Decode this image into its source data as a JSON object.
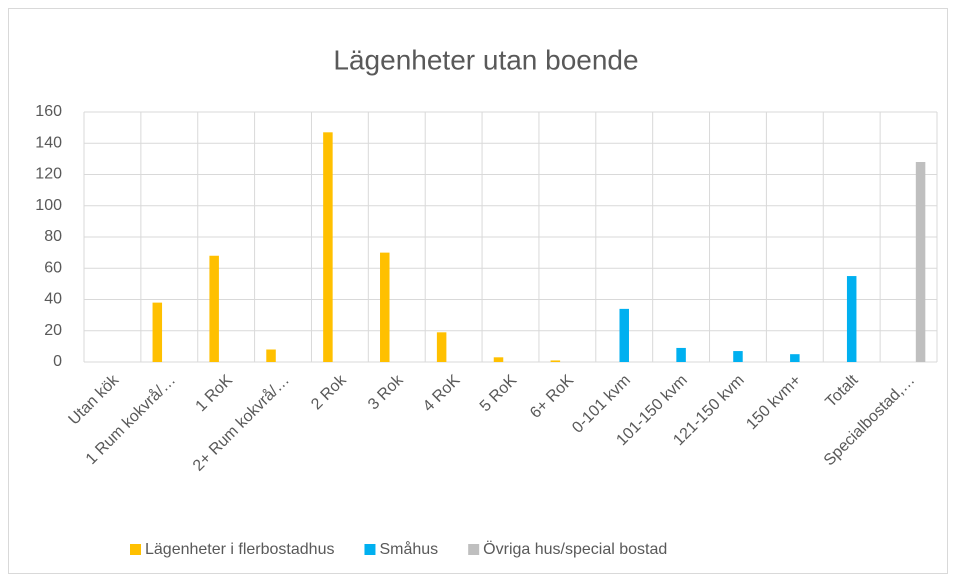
{
  "chart_data": {
    "type": "bar",
    "title": "Lägenheter utan boende",
    "categories": [
      "Utan kök",
      "1 Rum  kokvrå/…",
      "1 RoK",
      "2+ Rum kokvrå/…",
      "2 Rok",
      "3 Rok",
      "4 RoK",
      "5 RoK",
      "6+ RoK",
      "0-101 kvm",
      "101-150 kvm",
      "121-150 kvm",
      "150 kvm+",
      "Totalt",
      "Specialbostad,…"
    ],
    "series": [
      {
        "name": "Lägenheter i flerbostadhus",
        "color": "#ffc000",
        "values": [
          null,
          38,
          68,
          8,
          147,
          70,
          19,
          3,
          1,
          null,
          null,
          null,
          null,
          null,
          null
        ]
      },
      {
        "name": "Småhus",
        "color": "#00b0f0",
        "values": [
          null,
          null,
          null,
          null,
          null,
          null,
          null,
          null,
          null,
          34,
          9,
          7,
          5,
          55,
          null
        ]
      },
      {
        "name": "Övriga hus/special bostad",
        "color": "#bfbfbf",
        "values": [
          null,
          null,
          null,
          null,
          null,
          null,
          null,
          null,
          null,
          null,
          null,
          null,
          null,
          null,
          128
        ]
      }
    ],
    "ylim": [
      0,
      160
    ],
    "yticks": [
      0,
      20,
      40,
      60,
      80,
      100,
      120,
      140,
      160
    ],
    "grid": true,
    "legend": "bottom"
  }
}
